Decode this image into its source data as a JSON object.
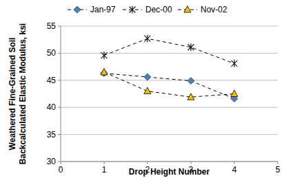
{
  "chart_data": {
    "type": "line",
    "x_label": "Drop Height Number",
    "y_label": [
      "Weathered Fine-Grained Soil",
      "Backcalculated Elastic Modulus, ksi"
    ],
    "x": [
      1,
      2,
      3,
      4
    ],
    "series": [
      {
        "name": "Jan-97",
        "color": "#4f81bd",
        "marker": "diamond",
        "line_style": "dashed",
        "values": [
          46.3,
          45.6,
          44.9,
          41.6
        ]
      },
      {
        "name": "Dec-00",
        "color": "#1a1a1a",
        "marker": "asterisk",
        "line_style": "dashed",
        "values": [
          49.6,
          52.7,
          51.1,
          48.1
        ]
      },
      {
        "name": "Nov-02",
        "color": "#f2c200",
        "marker": "triangle",
        "line_style": "dashed",
        "values": [
          46.5,
          43.0,
          41.9,
          42.5
        ]
      }
    ],
    "xlim": [
      0,
      5
    ],
    "xticks": [
      0,
      1,
      2,
      3,
      4,
      5
    ],
    "ylim": [
      30,
      55
    ],
    "yticks": [
      30,
      35,
      40,
      45,
      50,
      55
    ],
    "grid": true,
    "legend": "top"
  }
}
